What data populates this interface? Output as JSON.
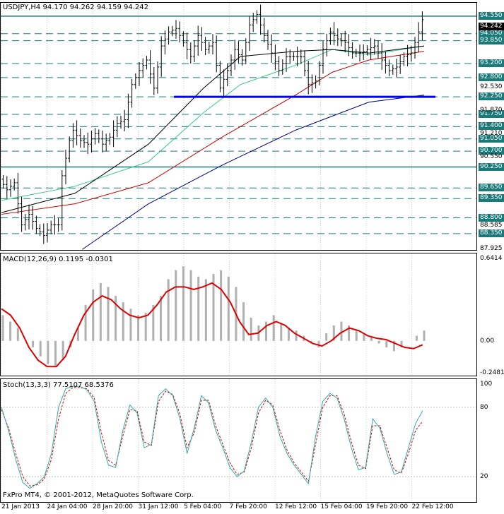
{
  "header": {
    "main": "USDJPY,H4  94.170 94.262 94.159 94.242",
    "macd": "MACD(12,26,9)  0.1195 -0.0301",
    "stoch": "Stoch(13,3,3)  77.5107 68.5376"
  },
  "footer": {
    "copyright": "FxPro MT4, © 2001-2012, MetaQuotes Software Corp."
  },
  "colors": {
    "background": "#ffffff",
    "level_line": "#1a7a7a",
    "level_tag": "#1a7a7a",
    "support": "#0000ff",
    "ma_red": "#cc0000",
    "ma_green": "#33cc88",
    "ma_navy": "#000088",
    "ma_black": "#000000",
    "macd_hist": "#b0b0b0",
    "macd_signal": "#dd0000",
    "stoch_main": "#33aaaa",
    "stoch_signal": "#cc0000",
    "vgrid": "#cccccc"
  },
  "chart_data": [
    {
      "type": "line",
      "title": "USDJPY,H4",
      "ylim": [
        87.925,
        94.85
      ],
      "y_axis_labels": [
        "94.550",
        "94.050",
        "93.850",
        "93.200",
        "92.800",
        "92.530",
        "92.250",
        "91.870",
        "91.750",
        "91.400",
        "91.210",
        "91.050",
        "90.700",
        "90.550",
        "90.250",
        "89.650",
        "89.350",
        "88.800",
        "88.585",
        "88.350",
        "87.925"
      ],
      "axis_ticks": [
        "92.530",
        "91.870",
        "91.210",
        "90.550",
        "88.585",
        "87.925"
      ],
      "levels": [
        94.55,
        94.05,
        93.85,
        93.2,
        92.8,
        92.25,
        91.75,
        91.4,
        91.05,
        90.7,
        90.25,
        89.65,
        89.35,
        88.8,
        88.35
      ],
      "current_price": 94.242,
      "current_price_label": "94.242",
      "support_line": 92.25,
      "x_labels": [
        "21 Jan 2013",
        "24 Jan 04:00",
        "28 Jan 20:00",
        "31 Jan 12:00",
        "5 Feb 04:00",
        "7 Feb 20:00",
        "12 Feb 12:00",
        "15 Feb 04:00",
        "19 Feb 20:00",
        "22 Feb 12:00"
      ],
      "price_path": [
        [
          0,
          89.9
        ],
        [
          2,
          89.6
        ],
        [
          4,
          89.8
        ],
        [
          6,
          88.6
        ],
        [
          8,
          88.9
        ],
        [
          10,
          88.5
        ],
        [
          12,
          88.3
        ],
        [
          14,
          88.6
        ],
        [
          16,
          88.6
        ],
        [
          17,
          90.0
        ],
        [
          18,
          90.5
        ],
        [
          19,
          91.0
        ],
        [
          20,
          91.3
        ],
        [
          22,
          91.0
        ],
        [
          24,
          90.9
        ],
        [
          26,
          91.2
        ],
        [
          28,
          90.9
        ],
        [
          30,
          91.1
        ],
        [
          32,
          91.5
        ],
        [
          34,
          91.6
        ],
        [
          36,
          92.6
        ],
        [
          38,
          93.0
        ],
        [
          40,
          93.3
        ],
        [
          42,
          92.5
        ],
        [
          44,
          93.7
        ],
        [
          46,
          94.1
        ],
        [
          48,
          94.2
        ],
        [
          50,
          93.8
        ],
        [
          52,
          93.4
        ],
        [
          54,
          94.0
        ],
        [
          56,
          93.6
        ],
        [
          58,
          93.8
        ],
        [
          60,
          92.5
        ],
        [
          62,
          93.0
        ],
        [
          64,
          93.6
        ],
        [
          66,
          93.3
        ],
        [
          68,
          94.3
        ],
        [
          70,
          94.6
        ],
        [
          72,
          94.0
        ],
        [
          74,
          93.5
        ],
        [
          76,
          93.0
        ],
        [
          78,
          93.4
        ],
        [
          80,
          93.4
        ],
        [
          82,
          93.4
        ],
        [
          84,
          92.6
        ],
        [
          86,
          92.7
        ],
        [
          88,
          93.6
        ],
        [
          90,
          94.1
        ],
        [
          92,
          93.9
        ],
        [
          94,
          93.8
        ],
        [
          96,
          93.5
        ],
        [
          98,
          93.5
        ],
        [
          100,
          93.6
        ],
        [
          102,
          93.7
        ],
        [
          104,
          93.3
        ],
        [
          106,
          93.0
        ],
        [
          108,
          93.1
        ],
        [
          110,
          93.4
        ],
        [
          112,
          93.5
        ],
        [
          114,
          94.1
        ],
        [
          115,
          94.45
        ]
      ],
      "ma_red": [
        [
          0,
          88.9
        ],
        [
          20,
          89.2
        ],
        [
          40,
          89.8
        ],
        [
          60,
          91.1
        ],
        [
          80,
          92.3
        ],
        [
          90,
          92.95
        ],
        [
          100,
          93.3
        ],
        [
          115,
          93.55
        ]
      ],
      "ma_green": [
        [
          0,
          89.3
        ],
        [
          20,
          89.7
        ],
        [
          40,
          90.4
        ],
        [
          55,
          91.8
        ],
        [
          65,
          92.6
        ],
        [
          80,
          93.15
        ],
        [
          90,
          93.6
        ],
        [
          100,
          93.45
        ],
        [
          115,
          93.7
        ]
      ],
      "ma_black": [
        [
          0,
          88.95
        ],
        [
          20,
          89.5
        ],
        [
          40,
          90.9
        ],
        [
          55,
          92.5
        ],
        [
          65,
          93.4
        ],
        [
          80,
          93.55
        ],
        [
          90,
          93.6
        ],
        [
          100,
          93.5
        ],
        [
          115,
          93.7
        ]
      ],
      "ma_navy": [
        [
          22,
          87.9
        ],
        [
          40,
          89.2
        ],
        [
          60,
          90.3
        ],
        [
          80,
          91.3
        ],
        [
          100,
          92.1
        ],
        [
          115,
          92.3
        ]
      ]
    },
    {
      "type": "bar",
      "title": "MACD(12,26,9)",
      "ylim": [
        -0.2481,
        0.6414
      ],
      "y_axis_labels": [
        "0.6414",
        "0.00",
        "-0.2481"
      ],
      "histogram": [
        0.2,
        0.15,
        0.1,
        0.0,
        -0.05,
        -0.12,
        -0.18,
        -0.2,
        -0.15,
        -0.05,
        0.1,
        0.28,
        0.4,
        0.45,
        0.42,
        0.35,
        0.3,
        0.25,
        0.2,
        0.22,
        0.28,
        0.35,
        0.48,
        0.55,
        0.58,
        0.55,
        0.5,
        0.48,
        0.52,
        0.55,
        0.5,
        0.42,
        0.3,
        0.18,
        0.12,
        0.15,
        0.2,
        0.14,
        0.1,
        0.08,
        0.04,
        -0.02,
        -0.05,
        0.06,
        0.12,
        0.15,
        0.12,
        0.08,
        0.05,
        0.03,
        -0.02,
        -0.05,
        -0.08,
        -0.05,
        0.0,
        0.04,
        0.08
      ],
      "signal": [
        0.25,
        0.2,
        0.1,
        -0.05,
        -0.15,
        -0.2,
        -0.2,
        -0.12,
        0.05,
        0.2,
        0.3,
        0.35,
        0.32,
        0.25,
        0.2,
        0.18,
        0.2,
        0.28,
        0.38,
        0.42,
        0.42,
        0.4,
        0.42,
        0.45,
        0.4,
        0.3,
        0.15,
        0.05,
        0.06,
        0.12,
        0.15,
        0.12,
        0.06,
        0.02,
        -0.02,
        -0.04,
        0.0,
        0.06,
        0.1,
        0.08,
        0.04,
        0.02,
        0.01,
        -0.02,
        -0.05,
        -0.06,
        -0.03
      ]
    },
    {
      "type": "line",
      "title": "Stoch(13,3,3)",
      "ylim": [
        0,
        100
      ],
      "y_axis_labels": [
        "100",
        "80",
        "20",
        "0"
      ],
      "main": [
        80,
        60,
        35,
        15,
        10,
        14,
        20,
        40,
        80,
        96,
        98,
        98,
        95,
        85,
        50,
        30,
        28,
        60,
        82,
        75,
        45,
        48,
        90,
        96,
        90,
        70,
        40,
        62,
        90,
        84,
        60,
        45,
        28,
        20,
        25,
        50,
        80,
        88,
        80,
        55,
        40,
        30,
        22,
        14,
        55,
        85,
        92,
        88,
        70,
        45,
        26,
        28,
        70,
        62,
        40,
        22,
        24,
        45,
        66,
        77
      ],
      "signal": [
        78,
        62,
        40,
        20,
        12,
        13,
        18,
        35,
        70,
        92,
        97,
        97,
        96,
        88,
        58,
        34,
        30,
        55,
        78,
        77,
        50,
        47,
        85,
        94,
        91,
        74,
        45,
        58,
        86,
        86,
        64,
        48,
        32,
        22,
        24,
        45,
        75,
        86,
        82,
        60,
        43,
        32,
        24,
        16,
        48,
        80,
        90,
        90,
        74,
        50,
        30,
        27,
        64,
        64,
        45,
        26,
        23,
        40,
        60,
        68
      ]
    }
  ]
}
